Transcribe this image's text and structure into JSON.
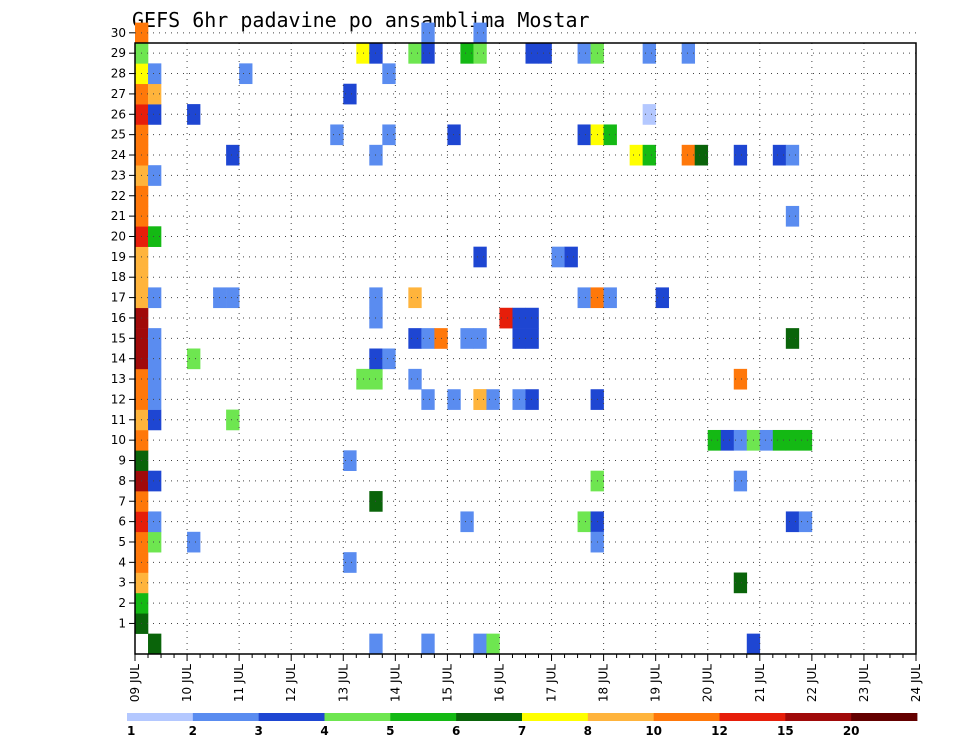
{
  "chart_data": {
    "type": "heatmap",
    "title": "GEFS 6hr padavine po ansamblima Mostar",
    "x_tick_labels": [
      "09 JUL",
      "10 JUL",
      "11 JUL",
      "12 JUL",
      "13 JUL",
      "14 JUL",
      "15 JUL",
      "16 JUL",
      "17 JUL",
      "18 JUL",
      "19 JUL",
      "20 JUL",
      "21 JUL",
      "22 JUL",
      "23 JUL",
      "24 JUL"
    ],
    "y_tick_labels": [
      "1",
      "2",
      "3",
      "4",
      "5",
      "6",
      "7",
      "8",
      "9",
      "10",
      "11",
      "12",
      "13",
      "14",
      "15",
      "16",
      "17",
      "18",
      "19",
      "20",
      "21",
      "22",
      "23",
      "24",
      "25",
      "26",
      "27",
      "28",
      "29",
      "30"
    ],
    "grid": "dotted",
    "colorbar": {
      "labels": [
        "1",
        "2",
        "3",
        "4",
        "5",
        "6",
        "7",
        "8",
        "10",
        "12",
        "15",
        "20"
      ],
      "colors": [
        "#b4c8ff",
        "#5a8cf0",
        "#1e46d2",
        "#6ee650",
        "#14b914",
        "#0a640a",
        "#ffff00",
        "#ffb43c",
        "#ff780a",
        "#e61e0a",
        "#a00a0a",
        "#640000"
      ]
    },
    "cells": [
      {
        "s": 0,
        "m": 1,
        "c": 5
      },
      {
        "s": 0,
        "m": 2,
        "c": 4
      },
      {
        "s": 0,
        "m": 3,
        "c": 7
      },
      {
        "s": 0,
        "m": 4,
        "c": 8
      },
      {
        "s": 0,
        "m": 5,
        "c": 8
      },
      {
        "s": 0,
        "m": 6,
        "c": 9
      },
      {
        "s": 0,
        "m": 7,
        "c": 8
      },
      {
        "s": 0,
        "m": 8,
        "c": 10
      },
      {
        "s": 0,
        "m": 9,
        "c": 5
      },
      {
        "s": 0,
        "m": 10,
        "c": 8
      },
      {
        "s": 0,
        "m": 11,
        "c": 7
      },
      {
        "s": 0,
        "m": 12,
        "c": 8
      },
      {
        "s": 0,
        "m": 13,
        "c": 8
      },
      {
        "s": 0,
        "m": 14,
        "c": 10
      },
      {
        "s": 0,
        "m": 15,
        "c": 10
      },
      {
        "s": 0,
        "m": 16,
        "c": 10
      },
      {
        "s": 0,
        "m": 17,
        "c": 7
      },
      {
        "s": 0,
        "m": 18,
        "c": 7
      },
      {
        "s": 0,
        "m": 19,
        "c": 7
      },
      {
        "s": 0,
        "m": 20,
        "c": 9
      },
      {
        "s": 0,
        "m": 21,
        "c": 8
      },
      {
        "s": 0,
        "m": 22,
        "c": 8
      },
      {
        "s": 0,
        "m": 23,
        "c": 7
      },
      {
        "s": 0,
        "m": 24,
        "c": 8
      },
      {
        "s": 0,
        "m": 25,
        "c": 8
      },
      {
        "s": 0,
        "m": 26,
        "c": 9
      },
      {
        "s": 0,
        "m": 27,
        "c": 8
      },
      {
        "s": 0,
        "m": 28,
        "c": 6
      },
      {
        "s": 0,
        "m": 29,
        "c": 3
      },
      {
        "s": 0,
        "m": 30,
        "c": 8
      },
      {
        "s": 1,
        "m": 0,
        "c": 5
      },
      {
        "s": 1,
        "m": 5,
        "c": 3
      },
      {
        "s": 1,
        "m": 6,
        "c": 1
      },
      {
        "s": 1,
        "m": 8,
        "c": 2
      },
      {
        "s": 1,
        "m": 11,
        "c": 2
      },
      {
        "s": 1,
        "m": 12,
        "c": 1
      },
      {
        "s": 1,
        "m": 13,
        "c": 1
      },
      {
        "s": 1,
        "m": 14,
        "c": 1
      },
      {
        "s": 1,
        "m": 15,
        "c": 1
      },
      {
        "s": 1,
        "m": 17,
        "c": 1
      },
      {
        "s": 1,
        "m": 20,
        "c": 4
      },
      {
        "s": 1,
        "m": 23,
        "c": 1
      },
      {
        "s": 1,
        "m": 26,
        "c": 2
      },
      {
        "s": 1,
        "m": 27,
        "c": 7
      },
      {
        "s": 1,
        "m": 28,
        "c": 1
      },
      {
        "s": 4,
        "m": 5,
        "c": 1
      },
      {
        "s": 4,
        "m": 14,
        "c": 3
      },
      {
        "s": 4,
        "m": 26,
        "c": 2
      },
      {
        "s": 6,
        "m": 17,
        "c": 1
      },
      {
        "s": 7,
        "m": 17,
        "c": 1
      },
      {
        "s": 7,
        "m": 11,
        "c": 3
      },
      {
        "s": 7,
        "m": 24,
        "c": 2
      },
      {
        "s": 8,
        "m": 28,
        "c": 1
      },
      {
        "s": 15,
        "m": 25,
        "c": 1
      },
      {
        "s": 16,
        "m": 4,
        "c": 1
      },
      {
        "s": 16,
        "m": 9,
        "c": 1
      },
      {
        "s": 16,
        "m": 27,
        "c": 2
      },
      {
        "s": 17,
        "m": 13,
        "c": 3
      },
      {
        "s": 17,
        "m": 29,
        "c": 6
      },
      {
        "s": 18,
        "m": 13,
        "c": 3
      },
      {
        "s": 18,
        "m": 14,
        "c": 2
      },
      {
        "s": 18,
        "m": 16,
        "c": 1
      },
      {
        "s": 18,
        "m": 7,
        "c": 5
      },
      {
        "s": 18,
        "m": 0,
        "c": 1
      },
      {
        "s": 18,
        "m": 17,
        "c": 1
      },
      {
        "s": 18,
        "m": 24,
        "c": 1
      },
      {
        "s": 18,
        "m": 29,
        "c": 2
      },
      {
        "s": 19,
        "m": 14,
        "c": 1
      },
      {
        "s": 19,
        "m": 25,
        "c": 1
      },
      {
        "s": 19,
        "m": 28,
        "c": 1
      },
      {
        "s": 21,
        "m": 29,
        "c": 3
      },
      {
        "s": 22,
        "m": 29,
        "c": 2
      },
      {
        "s": 21,
        "m": 13,
        "c": 1
      },
      {
        "s": 21,
        "m": 15,
        "c": 2
      },
      {
        "s": 22,
        "m": 15,
        "c": 1
      },
      {
        "s": 22,
        "m": 12,
        "c": 1
      },
      {
        "s": 21,
        "m": 17,
        "c": 7
      },
      {
        "s": 22,
        "m": 30,
        "c": 1
      },
      {
        "s": 22,
        "m": 0,
        "c": 1
      },
      {
        "s": 23,
        "m": 15,
        "c": 8
      },
      {
        "s": 24,
        "m": 25,
        "c": 2
      },
      {
        "s": 24,
        "m": 12,
        "c": 1
      },
      {
        "s": 25,
        "m": 29,
        "c": 4
      },
      {
        "s": 25,
        "m": 15,
        "c": 1
      },
      {
        "s": 25,
        "m": 6,
        "c": 1
      },
      {
        "s": 26,
        "m": 29,
        "c": 3
      },
      {
        "s": 26,
        "m": 30,
        "c": 1
      },
      {
        "s": 26,
        "m": 15,
        "c": 1
      },
      {
        "s": 26,
        "m": 12,
        "c": 7
      },
      {
        "s": 26,
        "m": 19,
        "c": 2
      },
      {
        "s": 26,
        "m": 0,
        "c": 1
      },
      {
        "s": 26,
        "m": 12,
        "c": 7
      },
      {
        "s": 27,
        "m": 0,
        "c": 3
      },
      {
        "s": 27,
        "m": 12,
        "c": 1
      },
      {
        "s": 28,
        "m": 16,
        "c": 9
      },
      {
        "s": 29,
        "m": 16,
        "c": 2
      },
      {
        "s": 29,
        "m": 15,
        "c": 2
      },
      {
        "s": 29,
        "m": 12,
        "c": 1
      },
      {
        "s": 30,
        "m": 16,
        "c": 2
      },
      {
        "s": 30,
        "m": 15,
        "c": 2
      },
      {
        "s": 30,
        "m": 29,
        "c": 2
      },
      {
        "s": 30,
        "m": 12,
        "c": 2
      },
      {
        "s": 31,
        "m": 29,
        "c": 2
      },
      {
        "s": 32,
        "m": 19,
        "c": 1
      },
      {
        "s": 33,
        "m": 19,
        "c": 2
      },
      {
        "s": 34,
        "m": 29,
        "c": 1
      },
      {
        "s": 34,
        "m": 25,
        "c": 2
      },
      {
        "s": 34,
        "m": 17,
        "c": 1
      },
      {
        "s": 34,
        "m": 6,
        "c": 3
      },
      {
        "s": 35,
        "m": 29,
        "c": 3
      },
      {
        "s": 35,
        "m": 25,
        "c": 6
      },
      {
        "s": 35,
        "m": 17,
        "c": 8
      },
      {
        "s": 35,
        "m": 12,
        "c": 2
      },
      {
        "s": 35,
        "m": 8,
        "c": 3
      },
      {
        "s": 35,
        "m": 6,
        "c": 2
      },
      {
        "s": 35,
        "m": 5,
        "c": 1
      },
      {
        "s": 36,
        "m": 25,
        "c": 4
      },
      {
        "s": 36,
        "m": 17,
        "c": 1
      },
      {
        "s": 38,
        "m": 24,
        "c": 6
      },
      {
        "s": 39,
        "m": 24,
        "c": 4
      },
      {
        "s": 39,
        "m": 26,
        "c": 0
      },
      {
        "s": 39,
        "m": 29,
        "c": 1
      },
      {
        "s": 40,
        "m": 17,
        "c": 2
      },
      {
        "s": 42,
        "m": 29,
        "c": 1
      },
      {
        "s": 42,
        "m": 24,
        "c": 8
      },
      {
        "s": 43,
        "m": 24,
        "c": 5
      },
      {
        "s": 44,
        "m": 10,
        "c": 4
      },
      {
        "s": 45,
        "m": 10,
        "c": 2
      },
      {
        "s": 46,
        "m": 10,
        "c": 1
      },
      {
        "s": 46,
        "m": 24,
        "c": 2
      },
      {
        "s": 46,
        "m": 13,
        "c": 8
      },
      {
        "s": 46,
        "m": 8,
        "c": 1
      },
      {
        "s": 46,
        "m": 3,
        "c": 5
      },
      {
        "s": 47,
        "m": 10,
        "c": 3
      },
      {
        "s": 47,
        "m": 0,
        "c": 2
      },
      {
        "s": 48,
        "m": 10,
        "c": 1
      },
      {
        "s": 49,
        "m": 10,
        "c": 4
      },
      {
        "s": 49,
        "m": 24,
        "c": 2
      },
      {
        "s": 50,
        "m": 10,
        "c": 4
      },
      {
        "s": 50,
        "m": 24,
        "c": 1
      },
      {
        "s": 50,
        "m": 21,
        "c": 1
      },
      {
        "s": 50,
        "m": 6,
        "c": 2
      },
      {
        "s": 50,
        "m": 15,
        "c": 5
      },
      {
        "s": 51,
        "m": 10,
        "c": 4
      },
      {
        "s": 51,
        "m": 6,
        "c": 1
      }
    ]
  }
}
